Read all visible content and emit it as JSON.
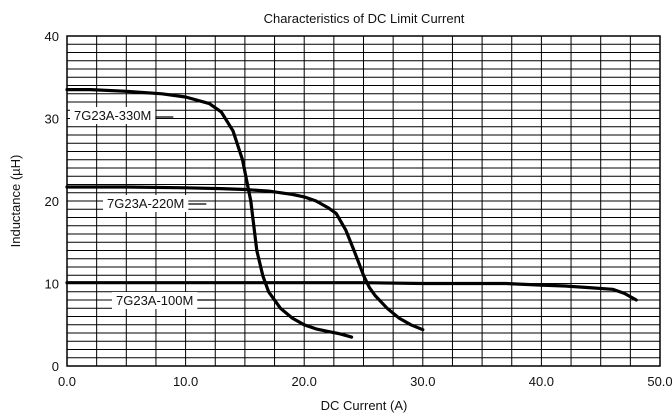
{
  "chart_data": {
    "type": "line",
    "title": "Characteristics of DC Limit Current",
    "xlabel": "DC Current (A)",
    "ylabel": "Inductance (µH)",
    "xlim": [
      0,
      50
    ],
    "ylim": [
      0,
      40
    ],
    "x_ticks": [
      "0.0",
      "10.0",
      "20.0",
      "30.0",
      "40.0",
      "50.0"
    ],
    "y_ticks": [
      "0",
      "10",
      "20",
      "30",
      "40"
    ],
    "grid": true,
    "line_color": "#000000",
    "series": [
      {
        "name": "7G23A-330M",
        "points": [
          [
            0,
            33.5
          ],
          [
            2,
            33.5
          ],
          [
            5,
            33.3
          ],
          [
            8,
            33.0
          ],
          [
            10,
            32.6
          ],
          [
            12,
            31.8
          ],
          [
            13,
            30.8
          ],
          [
            14,
            28.5
          ],
          [
            14.8,
            25.0
          ],
          [
            15.5,
            20.0
          ],
          [
            16.0,
            14.0
          ],
          [
            16.5,
            11.0
          ],
          [
            17.0,
            9.0
          ],
          [
            18.0,
            7.0
          ],
          [
            19.0,
            5.8
          ],
          [
            20.0,
            5.0
          ],
          [
            21.0,
            4.5
          ],
          [
            22.0,
            4.2
          ],
          [
            23.0,
            3.9
          ],
          [
            24.0,
            3.5
          ]
        ]
      },
      {
        "name": "7G23A-220M",
        "points": [
          [
            0,
            21.7
          ],
          [
            5,
            21.7
          ],
          [
            10,
            21.6
          ],
          [
            13,
            21.5
          ],
          [
            15,
            21.4
          ],
          [
            17,
            21.2
          ],
          [
            19,
            20.8
          ],
          [
            20,
            20.5
          ],
          [
            21,
            20.0
          ],
          [
            22,
            19.2
          ],
          [
            22.7,
            18.5
          ],
          [
            23.5,
            16.5
          ],
          [
            24.2,
            14.0
          ],
          [
            24.6,
            12.5
          ],
          [
            25.0,
            11.0
          ],
          [
            25.5,
            9.5
          ],
          [
            26.0,
            8.5
          ],
          [
            27.0,
            7.0
          ],
          [
            28.0,
            5.8
          ],
          [
            29.0,
            5.0
          ],
          [
            30.0,
            4.4
          ]
        ]
      },
      {
        "name": "7G23A-100M",
        "points": [
          [
            0,
            10.1
          ],
          [
            5,
            10.1
          ],
          [
            10,
            10.1
          ],
          [
            15,
            10.1
          ],
          [
            20,
            10.1
          ],
          [
            25,
            10.1
          ],
          [
            30,
            10.0
          ],
          [
            35,
            10.0
          ],
          [
            37,
            10.0
          ],
          [
            40,
            9.8
          ],
          [
            42,
            9.7
          ],
          [
            44,
            9.5
          ],
          [
            46,
            9.3
          ],
          [
            47,
            8.8
          ],
          [
            48,
            8.0
          ]
        ]
      }
    ]
  }
}
